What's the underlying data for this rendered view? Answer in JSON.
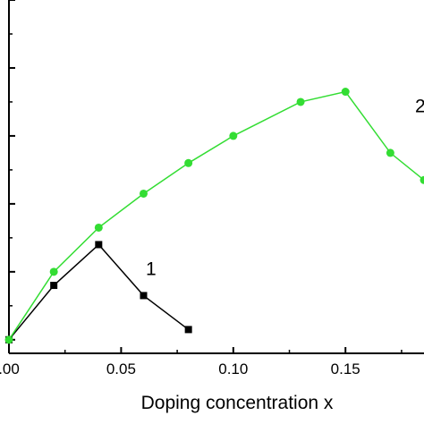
{
  "chart_data": {
    "type": "line",
    "title": "",
    "xlabel": "Doping concentration x",
    "ylabel": "",
    "xlim": [
      0.0,
      0.185
    ],
    "ylim": [
      -0.2,
      5.0
    ],
    "x_ticks": [
      0.0,
      0.05,
      0.1,
      0.15
    ],
    "x_tick_labels": [
      ".00",
      "0.05",
      "0.10",
      "0.15"
    ],
    "y_ticks": [
      0,
      1,
      2,
      3,
      4,
      5
    ],
    "grid": false,
    "legend": "none",
    "series": [
      {
        "name": "1",
        "color": "#000000",
        "marker": "square",
        "x": [
          0.0,
          0.02,
          0.04,
          0.06,
          0.08
        ],
        "y": [
          0.0,
          0.8,
          1.4,
          0.65,
          0.15
        ]
      },
      {
        "name": "2",
        "color": "#33dd33",
        "marker": "circle",
        "x": [
          0.0,
          0.02,
          0.04,
          0.06,
          0.08,
          0.1,
          0.13,
          0.15,
          0.17,
          0.185
        ],
        "y": [
          0.0,
          1.0,
          1.65,
          2.15,
          2.6,
          3.0,
          3.5,
          3.65,
          2.75,
          2.35
        ]
      }
    ]
  }
}
